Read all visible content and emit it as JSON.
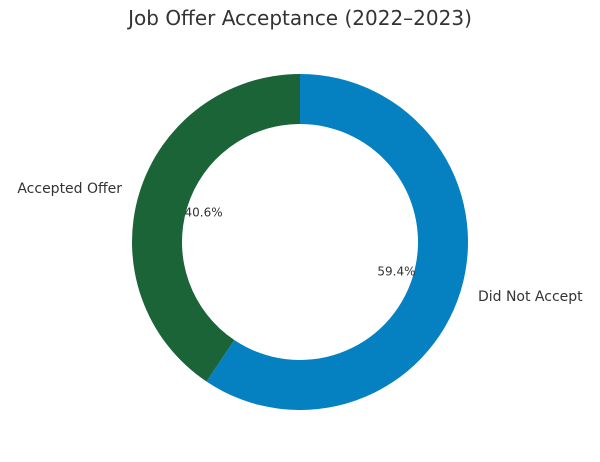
{
  "chart_data": {
    "type": "pie",
    "donut": true,
    "title": "Job Offer Acceptance (2022–2023)",
    "categories": [
      "Did Not Accept",
      "Accepted Offer"
    ],
    "values": [
      59.4,
      40.6
    ],
    "value_labels": [
      "59.4%",
      "40.6%"
    ],
    "colors": [
      "#0580c0",
      "#1b6437"
    ],
    "start_angle_deg": 90,
    "direction": "clockwise"
  }
}
